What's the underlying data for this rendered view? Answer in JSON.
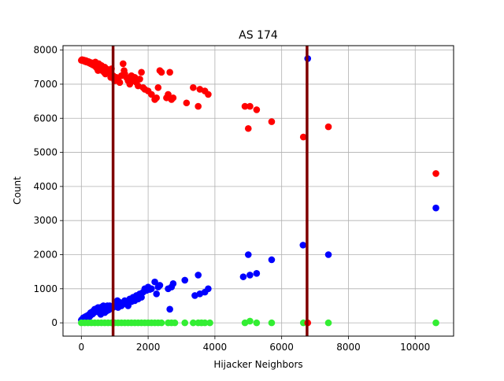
{
  "chart_data": {
    "type": "scatter",
    "title": "AS 174",
    "xlabel": "Hijacker Neighbors",
    "ylabel": "Count",
    "xlim": [
      -550,
      11150
    ],
    "ylim": [
      -390,
      8130
    ],
    "xticks": [
      0,
      2000,
      4000,
      6000,
      8000,
      10000
    ],
    "xtick_labels": [
      "0",
      "2000",
      "4000",
      "6000",
      "8000",
      "10000"
    ],
    "yticks": [
      0,
      1000,
      2000,
      3000,
      4000,
      5000,
      6000,
      7000,
      8000
    ],
    "ytick_labels": [
      "0",
      "1000",
      "2000",
      "3000",
      "4000",
      "5000",
      "6000",
      "7000",
      "8000"
    ],
    "grid": true,
    "vertical_lines": [
      {
        "x": 950,
        "color": "#800000"
      },
      {
        "x": 6760,
        "color": "#800000"
      }
    ],
    "series": [
      {
        "color": "#ff0000",
        "points": [
          [
            0,
            7700
          ],
          [
            20,
            7720
          ],
          [
            40,
            7690
          ],
          [
            60,
            7710
          ],
          [
            80,
            7680
          ],
          [
            100,
            7700
          ],
          [
            120,
            7660
          ],
          [
            140,
            7690
          ],
          [
            160,
            7650
          ],
          [
            180,
            7670
          ],
          [
            200,
            7640
          ],
          [
            220,
            7660
          ],
          [
            240,
            7620
          ],
          [
            260,
            7640
          ],
          [
            280,
            7600
          ],
          [
            300,
            7630
          ],
          [
            320,
            7580
          ],
          [
            340,
            7610
          ],
          [
            360,
            7560
          ],
          [
            380,
            7590
          ],
          [
            400,
            7540
          ],
          [
            420,
            7650
          ],
          [
            440,
            7500
          ],
          [
            460,
            7560
          ],
          [
            480,
            7450
          ],
          [
            500,
            7400
          ],
          [
            520,
            7600
          ],
          [
            540,
            7480
          ],
          [
            560,
            7420
          ],
          [
            600,
            7550
          ],
          [
            620,
            7400
          ],
          [
            650,
            7480
          ],
          [
            680,
            7350
          ],
          [
            700,
            7500
          ],
          [
            720,
            7300
          ],
          [
            750,
            7450
          ],
          [
            780,
            7380
          ],
          [
            800,
            7420
          ],
          [
            850,
            7300
          ],
          [
            880,
            7200
          ],
          [
            900,
            7450
          ],
          [
            950,
            7250
          ],
          [
            1000,
            7100
          ],
          [
            1050,
            7200
          ],
          [
            1100,
            7150
          ],
          [
            1150,
            7050
          ],
          [
            1200,
            7250
          ],
          [
            1250,
            7600
          ],
          [
            1280,
            7400
          ],
          [
            1300,
            7300
          ],
          [
            1350,
            7200
          ],
          [
            1400,
            7100
          ],
          [
            1450,
            7000
          ],
          [
            1500,
            7250
          ],
          [
            1550,
            7100
          ],
          [
            1600,
            7200
          ],
          [
            1650,
            7050
          ],
          [
            1700,
            6950
          ],
          [
            1750,
            7150
          ],
          [
            1800,
            7350
          ],
          [
            1850,
            6900
          ],
          [
            1900,
            6850
          ],
          [
            2000,
            6800
          ],
          [
            2100,
            6700
          ],
          [
            2200,
            6550
          ],
          [
            2250,
            6600
          ],
          [
            2300,
            6900
          ],
          [
            2350,
            7400
          ],
          [
            2400,
            7350
          ],
          [
            2550,
            6600
          ],
          [
            2600,
            6700
          ],
          [
            2650,
            7350
          ],
          [
            2700,
            6550
          ],
          [
            2750,
            6600
          ],
          [
            3150,
            6450
          ],
          [
            3350,
            6900
          ],
          [
            3500,
            6350
          ],
          [
            3550,
            6850
          ],
          [
            3700,
            6800
          ],
          [
            3800,
            6700
          ],
          [
            4900,
            6350
          ],
          [
            5000,
            5700
          ],
          [
            5050,
            6350
          ],
          [
            5250,
            6250
          ],
          [
            5700,
            5900
          ],
          [
            6650,
            5450
          ],
          [
            7400,
            5750
          ],
          [
            10620,
            4380
          ]
        ]
      },
      {
        "color": "#0000ff",
        "points": [
          [
            0,
            80
          ],
          [
            20,
            100
          ],
          [
            40,
            60
          ],
          [
            60,
            150
          ],
          [
            80,
            90
          ],
          [
            100,
            120
          ],
          [
            120,
            180
          ],
          [
            140,
            140
          ],
          [
            160,
            200
          ],
          [
            180,
            160
          ],
          [
            200,
            220
          ],
          [
            220,
            150
          ],
          [
            240,
            250
          ],
          [
            260,
            200
          ],
          [
            280,
            300
          ],
          [
            300,
            240
          ],
          [
            320,
            320
          ],
          [
            340,
            260
          ],
          [
            360,
            350
          ],
          [
            380,
            300
          ],
          [
            400,
            400
          ],
          [
            420,
            330
          ],
          [
            440,
            380
          ],
          [
            460,
            420
          ],
          [
            480,
            350
          ],
          [
            500,
            450
          ],
          [
            520,
            380
          ],
          [
            540,
            300
          ],
          [
            560,
            420
          ],
          [
            580,
            250
          ],
          [
            600,
            460
          ],
          [
            620,
            380
          ],
          [
            640,
            320
          ],
          [
            660,
            500
          ],
          [
            680,
            400
          ],
          [
            700,
            300
          ],
          [
            720,
            480
          ],
          [
            740,
            420
          ],
          [
            760,
            350
          ],
          [
            780,
            500
          ],
          [
            800,
            440
          ],
          [
            820,
            380
          ],
          [
            850,
            500
          ],
          [
            880,
            420
          ],
          [
            900,
            460
          ],
          [
            950,
            450
          ],
          [
            1000,
            500
          ],
          [
            1050,
            550
          ],
          [
            1080,
            650
          ],
          [
            1100,
            450
          ],
          [
            1150,
            600
          ],
          [
            1200,
            500
          ],
          [
            1250,
            550
          ],
          [
            1300,
            650
          ],
          [
            1350,
            600
          ],
          [
            1400,
            500
          ],
          [
            1450,
            700
          ],
          [
            1500,
            620
          ],
          [
            1550,
            750
          ],
          [
            1600,
            650
          ],
          [
            1650,
            800
          ],
          [
            1700,
            700
          ],
          [
            1750,
            850
          ],
          [
            1800,
            750
          ],
          [
            1850,
            900
          ],
          [
            1900,
            1000
          ],
          [
            1950,
            950
          ],
          [
            2000,
            1050
          ],
          [
            2050,
            980
          ],
          [
            2100,
            1000
          ],
          [
            2200,
            1200
          ],
          [
            2250,
            850
          ],
          [
            2300,
            1050
          ],
          [
            2350,
            1100
          ],
          [
            2600,
            1000
          ],
          [
            2650,
            400
          ],
          [
            2700,
            1050
          ],
          [
            2750,
            1150
          ],
          [
            3100,
            1250
          ],
          [
            3400,
            800
          ],
          [
            3500,
            1400
          ],
          [
            3550,
            850
          ],
          [
            3700,
            900
          ],
          [
            3800,
            1000
          ],
          [
            4850,
            1350
          ],
          [
            5000,
            2000
          ],
          [
            5050,
            1400
          ],
          [
            5250,
            1450
          ],
          [
            5700,
            1850
          ],
          [
            6640,
            2280
          ],
          [
            6780,
            7750
          ],
          [
            7400,
            2000
          ],
          [
            10620,
            3370
          ]
        ]
      },
      {
        "color": "#33ee33",
        "points": [
          [
            0,
            0
          ],
          [
            100,
            0
          ],
          [
            200,
            0
          ],
          [
            300,
            0
          ],
          [
            400,
            0
          ],
          [
            500,
            0
          ],
          [
            600,
            0
          ],
          [
            700,
            0
          ],
          [
            800,
            0
          ],
          [
            900,
            0
          ],
          [
            1000,
            0
          ],
          [
            1100,
            0
          ],
          [
            1200,
            0
          ],
          [
            1300,
            0
          ],
          [
            1400,
            0
          ],
          [
            1500,
            0
          ],
          [
            1600,
            0
          ],
          [
            1700,
            0
          ],
          [
            1800,
            0
          ],
          [
            1900,
            0
          ],
          [
            2000,
            0
          ],
          [
            2100,
            0
          ],
          [
            2200,
            0
          ],
          [
            2300,
            0
          ],
          [
            2400,
            0
          ],
          [
            2600,
            0
          ],
          [
            2700,
            0
          ],
          [
            2800,
            0
          ],
          [
            3100,
            0
          ],
          [
            3350,
            0
          ],
          [
            3500,
            0
          ],
          [
            3600,
            0
          ],
          [
            3700,
            0
          ],
          [
            3850,
            0
          ],
          [
            4900,
            0
          ],
          [
            5050,
            50
          ],
          [
            5250,
            0
          ],
          [
            5700,
            0
          ],
          [
            6650,
            0
          ],
          [
            7400,
            0
          ],
          [
            10620,
            0
          ]
        ]
      },
      {
        "color": "#ff0000",
        "points": [
          [
            6780,
            0
          ]
        ]
      }
    ]
  }
}
